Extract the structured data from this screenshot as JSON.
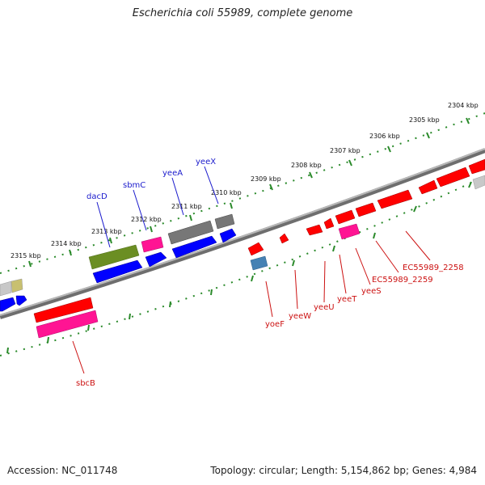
{
  "title": "Escherichia coli 55989, complete genome",
  "footer": {
    "accession": "Accession: NC_011748",
    "summary": "Topology: circular; Length: 5,154,862 bp; Genes: 4,984"
  },
  "scale": {
    "unit": "kbp",
    "ticks": [
      "2304 kbp",
      "2305 kbp",
      "2306 kbp",
      "2307 kbp",
      "2308 kbp",
      "2309 kbp",
      "2310 kbp",
      "2311 kbp",
      "2312 kbp",
      "2313 kbp",
      "2314 kbp",
      "2315 kbp"
    ]
  },
  "colors": {
    "backbone": "#808080",
    "tick": "#2a8a2a",
    "top_label": "#1a1acc",
    "bottom_label": "#cc1111",
    "gene_red": "#ff0000",
    "gene_blue": "#0000ff",
    "gene_pink": "#ff1493",
    "gene_olive": "#6b8e23",
    "gene_gray": "#777777",
    "gene_light_gray": "#c8c8c8",
    "gene_khaki": "#c8c070",
    "gene_steelblue": "#4682b4"
  },
  "gene_labels_top": [
    "dacD",
    "sbmC",
    "yeeA",
    "yeeX"
  ],
  "gene_labels_bottom": [
    "sbcB",
    "yoeF",
    "yeeW",
    "yeeU",
    "yeeT",
    "yeeS",
    "EC55989_2259",
    "EC55989_2258"
  ]
}
